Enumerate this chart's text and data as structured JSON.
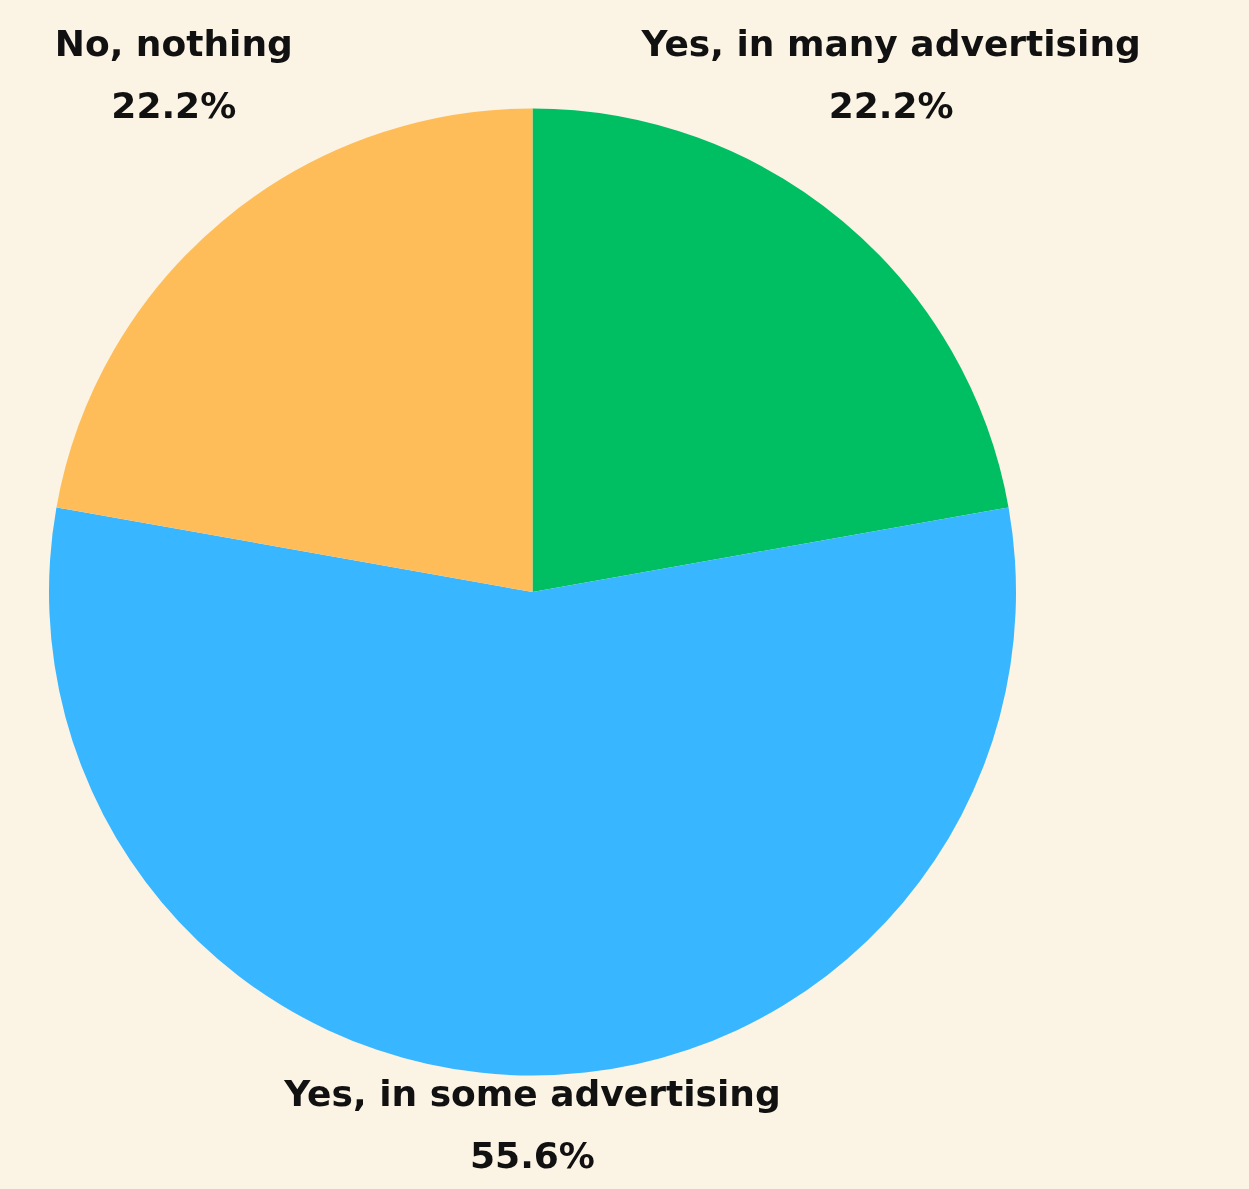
{
  "chart_data": {
    "type": "pie",
    "categories": [
      "Yes, in many advertising",
      "Yes, in some advertising",
      "No, nothing"
    ],
    "values": [
      22.2,
      55.6,
      22.2
    ],
    "colors": [
      "#00bf63",
      "#38b6ff",
      "#ffbd59"
    ],
    "value_labels": [
      "22.2%",
      "55.6%",
      "22.2%"
    ],
    "legend": false
  }
}
